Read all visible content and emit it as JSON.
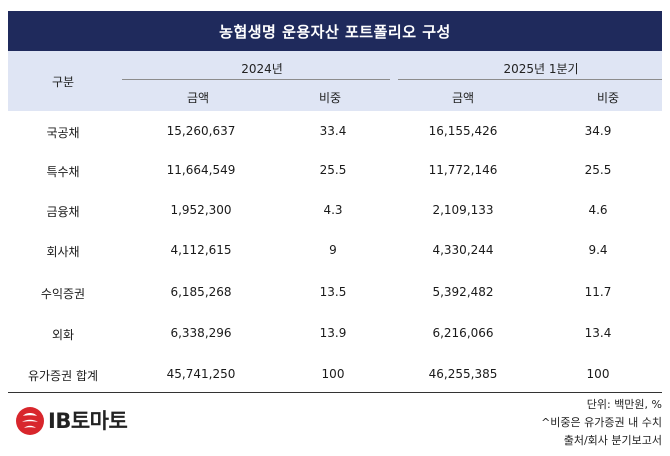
{
  "title": "농협생명 운용자산 포트폴리오 구성",
  "header": {
    "category": "구분",
    "period1": "2024년",
    "period2": "2025년 1분기",
    "amount": "금액",
    "ratio": "비중"
  },
  "rows": [
    {
      "name": "국공채",
      "a1": "15,260,637",
      "r1": "33.4",
      "a2": "16,155,426",
      "r2": "34.9"
    },
    {
      "name": "특수채",
      "a1": "11,664,549",
      "r1": "25.5",
      "a2": "11,772,146",
      "r2": "25.5"
    },
    {
      "name": "금융채",
      "a1": "1,952,300",
      "r1": "4.3",
      "a2": "2,109,133",
      "r2": "4.6"
    },
    {
      "name": "회사채",
      "a1": "4,112,615",
      "r1": "9",
      "a2": "4,330,244",
      "r2": "9.4"
    },
    {
      "name": "수익증권",
      "a1": "6,185,268",
      "r1": "13.5",
      "a2": "5,392,482",
      "r2": "11.7"
    },
    {
      "name": "외화",
      "a1": "6,338,296",
      "r1": "13.9",
      "a2": "6,216,066",
      "r2": "13.4"
    },
    {
      "name": "유가증권 합계",
      "a1": "45,741,250",
      "r1": "100",
      "a2": "46,255,385",
      "r2": "100"
    }
  ],
  "notes": {
    "unit": "단위: 백만원, %",
    "ratio_note": "^비중은 유가증권 내 수치",
    "source": "출처/회사 분기보고서"
  },
  "logo": {
    "text": "IB토마토",
    "mark_icon": "tomato-logo-icon",
    "color": "#d8262c"
  },
  "colors": {
    "title_bg": "#1f2a5c",
    "header_bg": "#dfe5f4"
  }
}
